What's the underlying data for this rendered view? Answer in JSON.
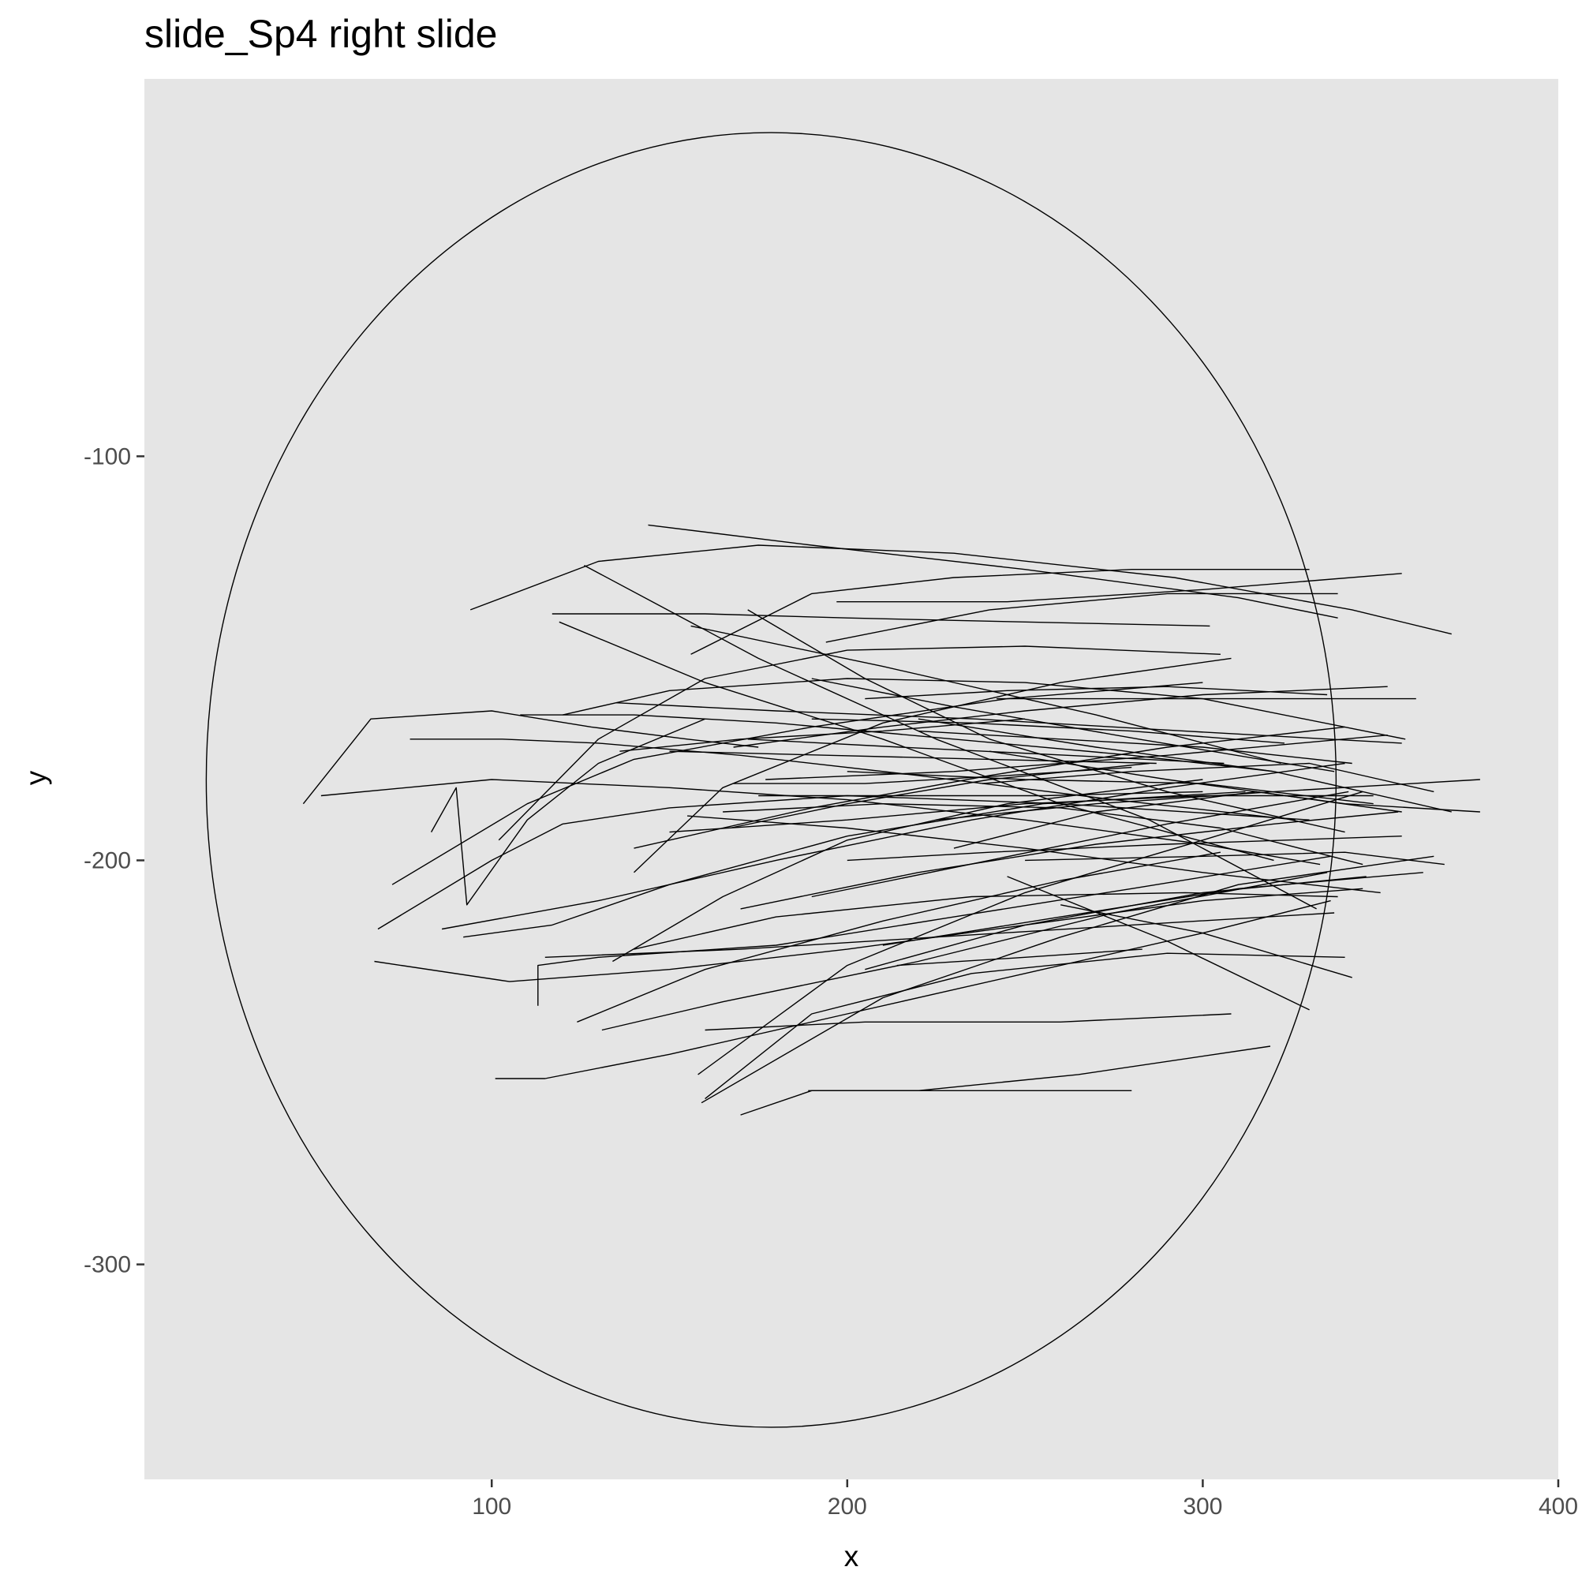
{
  "chart_data": {
    "type": "line",
    "title": "slide_Sp4 right slide",
    "xlabel": "x",
    "ylabel": "y",
    "xlim": [
      2.3,
      400
    ],
    "ylim": [
      -353.2,
      -6.6
    ],
    "x_ticks": [
      100,
      200,
      300,
      400
    ],
    "x_tick_labels": [
      "100",
      "200",
      "300",
      "400"
    ],
    "y_ticks": [
      -100,
      -200,
      -300
    ],
    "y_tick_labels": [
      "-100",
      "-200",
      "-300"
    ],
    "grid": false,
    "legend": "none",
    "background_color": "#e5e5e5",
    "line_color": "#000000",
    "circle": {
      "cx": 178.6,
      "cy": -180.1,
      "rx": 158.9,
      "ry": 160.2
    },
    "series": [
      {
        "x": [
          47,
          66,
          100,
          128,
          155,
          175
        ],
        "y": [
          -186,
          -165,
          -163,
          -167,
          -170,
          -172
        ]
      },
      {
        "x": [
          52,
          100,
          150,
          200,
          250,
          300,
          333
        ],
        "y": [
          -184,
          -180,
          -182,
          -185,
          -190,
          -196,
          -201
        ]
      },
      {
        "x": [
          77,
          103,
          130,
          170,
          220,
          275,
          326
        ],
        "y": [
          -170,
          -170,
          -171,
          -174,
          -179,
          -185,
          -190
        ]
      },
      {
        "x": [
          108,
          140,
          180,
          230,
          280,
          320
        ],
        "y": [
          -164,
          -164,
          -166,
          -170,
          -174,
          -178
        ]
      },
      {
        "x": [
          94,
          130,
          175,
          230,
          292,
          342,
          370
        ],
        "y": [
          -138,
          -126,
          -122,
          -124,
          -130,
          -138,
          -144
        ]
      },
      {
        "x": [
          144,
          190,
          250,
          310,
          338
        ],
        "y": [
          -117,
          -122,
          -128,
          -135,
          -140
        ]
      },
      {
        "x": [
          117,
          160,
          200,
          250,
          302
        ],
        "y": [
          -139,
          -139,
          -140,
          -141,
          -142
        ]
      },
      {
        "x": [
          197,
          245,
          300,
          356
        ],
        "y": [
          -136,
          -136,
          -133,
          -129
        ]
      },
      {
        "x": [
          156,
          210,
          270,
          322
        ],
        "y": [
          -142,
          -152,
          -164,
          -176
        ]
      },
      {
        "x": [
          126,
          175,
          225,
          285,
          332
        ],
        "y": [
          -127,
          -150,
          -170,
          -190,
          -212
        ]
      },
      {
        "x": [
          119,
          160,
          210,
          260,
          320
        ],
        "y": [
          -141,
          -156,
          -170,
          -186,
          -200
        ]
      },
      {
        "x": [
          135,
          180,
          236,
          295,
          356
        ],
        "y": [
          -161,
          -163,
          -165,
          -168,
          -171
        ]
      },
      {
        "x": [
          68,
          100,
          120,
          150,
          200,
          260,
          330
        ],
        "y": [
          -217,
          -200,
          -191,
          -187,
          -184,
          -186,
          -190
        ]
      },
      {
        "x": [
          72,
          110,
          140,
          190,
          245,
          300
        ],
        "y": [
          -206,
          -186,
          -175,
          -167,
          -160,
          -156
        ]
      },
      {
        "x": [
          83,
          90,
          93,
          110,
          130,
          160
        ],
        "y": [
          -193,
          -182,
          -211,
          -190,
          -176,
          -165
        ]
      },
      {
        "x": [
          86,
          130,
          180,
          235,
          290,
          340
        ],
        "y": [
          -217,
          -210,
          -200,
          -190,
          -182,
          -176
        ]
      },
      {
        "x": [
          92,
          117,
          150,
          200,
          255,
          312
        ],
        "y": [
          -219,
          -216,
          -206,
          -194,
          -186,
          -183
        ]
      },
      {
        "x": [
          67,
          105,
          150,
          200,
          250,
          300,
          345
        ],
        "y": [
          -225,
          -230,
          -227,
          -222,
          -216,
          -210,
          -207
        ]
      },
      {
        "x": [
          113,
          113,
          130,
          180,
          230,
          280,
          336
        ],
        "y": [
          -236,
          -226,
          -224,
          -221,
          -214,
          -207,
          -199
        ]
      },
      {
        "x": [
          101,
          115,
          150,
          200,
          250,
          300,
          336
        ],
        "y": [
          -254,
          -254,
          -248,
          -238,
          -228,
          -218,
          -210
        ]
      },
      {
        "x": [
          158,
          200,
          250,
          300,
          345
        ],
        "y": [
          -253,
          -226,
          -208,
          -195,
          -183
        ]
      },
      {
        "x": [
          159,
          210,
          260,
          310,
          365
        ],
        "y": [
          -260,
          -234,
          -219,
          -206,
          -199
        ]
      },
      {
        "x": [
          170,
          190,
          220,
          265,
          319
        ],
        "y": [
          -263,
          -257,
          -257,
          -253,
          -246
        ]
      },
      {
        "x": [
          189,
          230,
          280
        ],
        "y": [
          -257,
          -257,
          -257
        ]
      },
      {
        "x": [
          160,
          190,
          235,
          290,
          340
        ],
        "y": [
          -259,
          -238,
          -228,
          -223,
          -224
        ]
      },
      {
        "x": [
          140,
          180,
          235,
          295,
          338
        ],
        "y": [
          -222,
          -214,
          -209,
          -208,
          -209
        ]
      },
      {
        "x": [
          115,
          170,
          225,
          280,
          337
        ],
        "y": [
          -224,
          -222,
          -219,
          -216,
          -213
        ]
      },
      {
        "x": [
          124,
          160,
          210,
          260,
          305
        ],
        "y": [
          -240,
          -227,
          -215,
          -205,
          -198
        ]
      },
      {
        "x": [
          131,
          165,
          220,
          275,
          335
        ],
        "y": [
          -242,
          -235,
          -225,
          -213,
          -203
        ]
      },
      {
        "x": [
          160,
          205,
          260,
          308
        ],
        "y": [
          -242,
          -240,
          -240,
          -238
        ]
      },
      {
        "x": [
          134,
          165,
          200,
          245,
          300
        ],
        "y": [
          -225,
          -209,
          -195,
          -186,
          -180
        ]
      },
      {
        "x": [
          140,
          190,
          240,
          290,
          340
        ],
        "y": [
          -197,
          -187,
          -179,
          -172,
          -167
        ]
      },
      {
        "x": [
          120,
          150,
          200,
          250,
          300,
          357
        ],
        "y": [
          -164,
          -158,
          -155,
          -156,
          -160,
          -170
        ]
      },
      {
        "x": [
          102,
          130,
          160,
          200,
          250,
          305
        ],
        "y": [
          -195,
          -170,
          -155,
          -148,
          -147,
          -149
        ]
      },
      {
        "x": [
          140,
          165,
          210,
          260,
          308
        ],
        "y": [
          -203,
          -182,
          -166,
          -156,
          -150
        ]
      },
      {
        "x": [
          156,
          190,
          230,
          280,
          330
        ],
        "y": [
          -149,
          -134,
          -130,
          -128,
          -128
        ]
      },
      {
        "x": [
          194,
          240,
          290,
          338
        ],
        "y": [
          -146,
          -138,
          -134,
          -134
        ]
      },
      {
        "x": [
          190,
          230,
          282,
          337
        ],
        "y": [
          -155,
          -162,
          -170,
          -178
        ]
      },
      {
        "x": [
          172,
          205,
          240,
          290,
          340
        ],
        "y": [
          -138,
          -155,
          -170,
          -183,
          -193
        ]
      },
      {
        "x": [
          168,
          210,
          250,
          300,
          352
        ],
        "y": [
          -172,
          -167,
          -163,
          -159,
          -157
        ]
      },
      {
        "x": [
          177,
          230,
          290,
          352
        ],
        "y": [
          -180,
          -178,
          -174,
          -169
        ]
      },
      {
        "x": [
          150,
          200,
          250,
          300,
          348
        ],
        "y": [
          -193,
          -190,
          -186,
          -184,
          -184
        ]
      },
      {
        "x": [
          165,
          210,
          260,
          305,
          345
        ],
        "y": [
          -188,
          -186,
          -187,
          -192,
          -201
        ]
      },
      {
        "x": [
          155,
          200,
          250,
          300,
          350
        ],
        "y": [
          -189,
          -192,
          -197,
          -203,
          -208
        ]
      },
      {
        "x": [
          170,
          220,
          270,
          320,
          355
        ],
        "y": [
          -212,
          -203,
          -196,
          -191,
          -188
        ]
      },
      {
        "x": [
          190,
          240,
          290,
          341
        ],
        "y": [
          -209,
          -200,
          -191,
          -183
        ]
      },
      {
        "x": [
          210,
          260,
          310,
          362
        ],
        "y": [
          -221,
          -214,
          -207,
          -203
        ]
      },
      {
        "x": [
          205,
          250,
          300,
          346
        ],
        "y": [
          -227,
          -216,
          -208,
          -204
        ]
      },
      {
        "x": [
          214,
          250,
          283
        ],
        "y": [
          -226,
          -224,
          -222
        ]
      },
      {
        "x": [
          200,
          240,
          290,
          356
        ],
        "y": [
          -200,
          -198,
          -196,
          -194
        ]
      },
      {
        "x": [
          225,
          270,
          320,
          378
        ],
        "y": [
          -190,
          -186,
          -183,
          -180
        ]
      },
      {
        "x": [
          238,
          280,
          330,
          365
        ],
        "y": [
          -181,
          -178,
          -176,
          -183
        ]
      },
      {
        "x": [
          230,
          270,
          315,
          356
        ],
        "y": [
          -197,
          -188,
          -183,
          -188
        ]
      },
      {
        "x": [
          200,
          250,
          300,
          348
        ],
        "y": [
          -178,
          -180,
          -181,
          -186
        ]
      },
      {
        "x": [
          220,
          270,
          320,
          370
        ],
        "y": [
          -165,
          -172,
          -178,
          -188
        ]
      },
      {
        "x": [
          240,
          290,
          340,
          378
        ],
        "y": [
          -173,
          -180,
          -186,
          -188
        ]
      },
      {
        "x": [
          250,
          300,
          340,
          368
        ],
        "y": [
          -200,
          -199,
          -198,
          -201
        ]
      },
      {
        "x": [
          260,
          300,
          342
        ],
        "y": [
          -211,
          -218,
          -229
        ]
      },
      {
        "x": [
          245,
          290,
          330
        ],
        "y": [
          -204,
          -220,
          -237
        ]
      },
      {
        "x": [
          220,
          260,
          300,
          342
        ],
        "y": [
          -168,
          -170,
          -172,
          -176
        ]
      },
      {
        "x": [
          242,
          285,
          328,
          360
        ],
        "y": [
          -160,
          -160,
          -160,
          -160
        ]
      },
      {
        "x": [
          190,
          235,
          280,
          323
        ],
        "y": [
          -165,
          -166,
          -168,
          -171
        ]
      },
      {
        "x": [
          205,
          245,
          290,
          335
        ],
        "y": [
          -160,
          -158,
          -157,
          -159
        ]
      },
      {
        "x": [
          172,
          215,
          262,
          306
        ],
        "y": [
          -170,
          -172,
          -174,
          -176
        ]
      },
      {
        "x": [
          150,
          195,
          240,
          287
        ],
        "y": [
          -173,
          -174,
          -175,
          -176
        ]
      },
      {
        "x": [
          136,
          170,
          210,
          250
        ],
        "y": [
          -173,
          -170,
          -168,
          -165
        ]
      },
      {
        "x": [
          167,
          200,
          240,
          285
        ],
        "y": [
          -192,
          -186,
          -180,
          -176
        ]
      },
      {
        "x": [
          175,
          215,
          255,
          300
        ],
        "y": [
          -184,
          -184,
          -184,
          -183
        ]
      },
      {
        "x": [
          168,
          205,
          245,
          280
        ],
        "y": [
          -181,
          -181,
          -179,
          -177
        ]
      }
    ]
  }
}
